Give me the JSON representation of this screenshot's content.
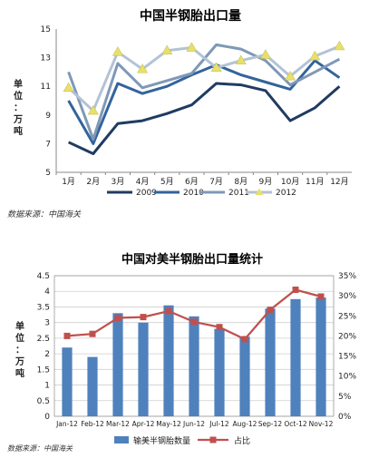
{
  "chart_data": [
    {
      "type": "line",
      "title": "中国半钢胎出口量",
      "ylabel": "单位：万吨",
      "categories": [
        "1月",
        "2月",
        "3月",
        "4月",
        "5月",
        "6月",
        "7月",
        "8月",
        "9月",
        "10月",
        "11月",
        "12月"
      ],
      "ylim": [
        5,
        15
      ],
      "yticks": [
        5,
        7,
        9,
        11,
        13,
        15
      ],
      "grid": false,
      "legend_position": "bottom",
      "series": [
        {
          "name": "2009",
          "color": "#1f3b63",
          "values": [
            7.1,
            6.3,
            8.4,
            8.6,
            9.1,
            9.7,
            11.2,
            11.1,
            10.7,
            8.6,
            9.5,
            11.0
          ]
        },
        {
          "name": "2010",
          "color": "#33649c",
          "values": [
            10.0,
            7.0,
            11.2,
            10.5,
            11.0,
            11.8,
            12.5,
            11.8,
            11.3,
            10.8,
            12.8,
            11.6
          ]
        },
        {
          "name": "2011",
          "color": "#7f98b8",
          "values": [
            12.0,
            7.3,
            12.6,
            10.9,
            11.4,
            11.9,
            13.9,
            13.6,
            12.8,
            11.1,
            12.0,
            12.9
          ]
        },
        {
          "name": "2012",
          "color": "#b3c3d6",
          "marker": "triangle",
          "marker_color": "#e8e06a",
          "values": [
            10.9,
            9.3,
            13.4,
            12.2,
            13.5,
            13.7,
            12.3,
            12.8,
            13.2,
            11.7,
            13.1,
            13.8
          ]
        }
      ]
    },
    {
      "type": "bar",
      "title": "中国对美半钢胎出口量统计",
      "ylabel": "单位：万吨",
      "categories": [
        "Jan-12",
        "Feb-12",
        "Mar-12",
        "Apr-12",
        "May-12",
        "Jun-12",
        "Jul-12",
        "Aug-12",
        "Sep-12",
        "Oct-12",
        "Nov-12"
      ],
      "ylim": [
        0,
        4.5
      ],
      "yticks": [
        0,
        0.5,
        1,
        1.5,
        2,
        2.5,
        3,
        3.5,
        4,
        4.5
      ],
      "y2lim": [
        0,
        35
      ],
      "y2ticks": [
        0,
        5,
        10,
        15,
        20,
        25,
        30,
        35
      ],
      "y2ticklabels": [
        "0%",
        "5%",
        "10%",
        "15%",
        "20%",
        "25%",
        "30%",
        "35%"
      ],
      "grid": true,
      "legend_position": "bottom",
      "series": [
        {
          "name": "输美半钢胎数量",
          "type": "bar",
          "axis": "left",
          "color": "#4f81bd",
          "values": [
            2.2,
            1.9,
            3.3,
            3.0,
            3.55,
            3.2,
            2.8,
            2.55,
            3.45,
            3.75,
            3.8
          ]
        },
        {
          "name": "占比",
          "type": "line",
          "axis": "right",
          "color": "#c0504d",
          "marker": "square",
          "values": [
            20.0,
            20.5,
            24.5,
            24.7,
            26.2,
            23.5,
            22.2,
            19.2,
            26.5,
            31.5,
            29.8
          ]
        }
      ]
    }
  ],
  "sources": {
    "top": "数据来源：中国海关",
    "bottom": "数据来源：中国海关"
  }
}
